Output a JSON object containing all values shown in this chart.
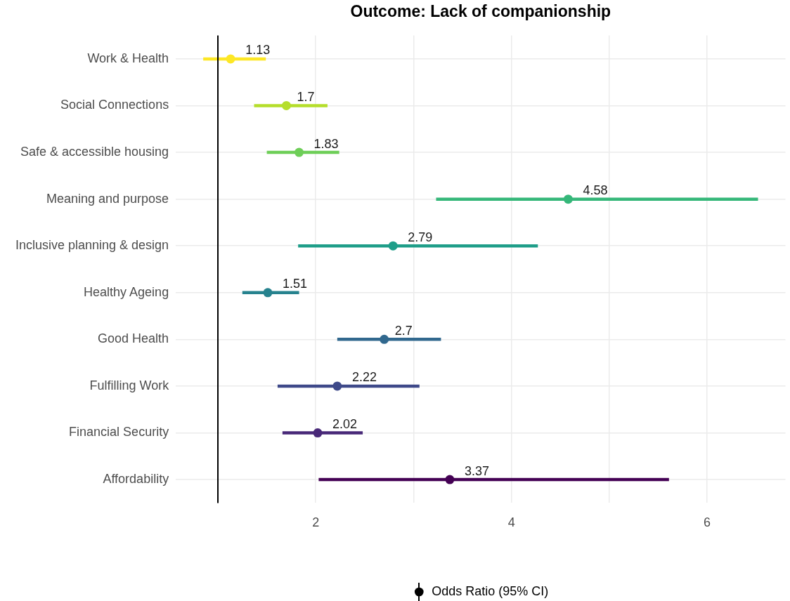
{
  "chart_data": {
    "type": "scatter",
    "orientation": "horizontal",
    "title": "Outcome: Lack of companionship",
    "categories": [
      "Work & Health",
      "Social Connections",
      "Safe & accessible housing",
      "Meaning and purpose",
      "Inclusive planning & design",
      "Healthy Ageing",
      "Good Health",
      "Fulfilling Work",
      "Financial Security",
      "Affordability"
    ],
    "series": [
      {
        "name": "Odds Ratio (95% CI)",
        "color": "#000000",
        "colors": [
          "#fde725",
          "#b5de2b",
          "#6ece58",
          "#35b779",
          "#1f9e89",
          "#26828e",
          "#31688e",
          "#3e4989",
          "#482878",
          "#440154"
        ],
        "values": [
          1.13,
          1.7,
          1.83,
          4.58,
          2.79,
          1.51,
          2.7,
          2.22,
          2.02,
          3.37
        ],
        "errors": [
          [
            0.85,
            1.49
          ],
          [
            1.37,
            2.12
          ],
          [
            1.5,
            2.24
          ],
          [
            3.23,
            6.52
          ],
          [
            1.82,
            4.27
          ],
          [
            1.25,
            1.83
          ],
          [
            2.22,
            3.28
          ],
          [
            1.61,
            3.06
          ],
          [
            1.66,
            2.48
          ],
          [
            2.03,
            5.61
          ]
        ]
      }
    ],
    "xlim": [
      0.57,
      6.8
    ],
    "xticks": [
      2,
      {
        "value": 3,
        "label": null
      },
      4,
      {
        "value": 5,
        "label": null
      },
      6
    ],
    "ref_lines": [
      {
        "axis": "x",
        "value": 1,
        "color": "#000000"
      }
    ],
    "data_labels": true,
    "grid": true,
    "legend": "bottom",
    "marker": "circle"
  }
}
